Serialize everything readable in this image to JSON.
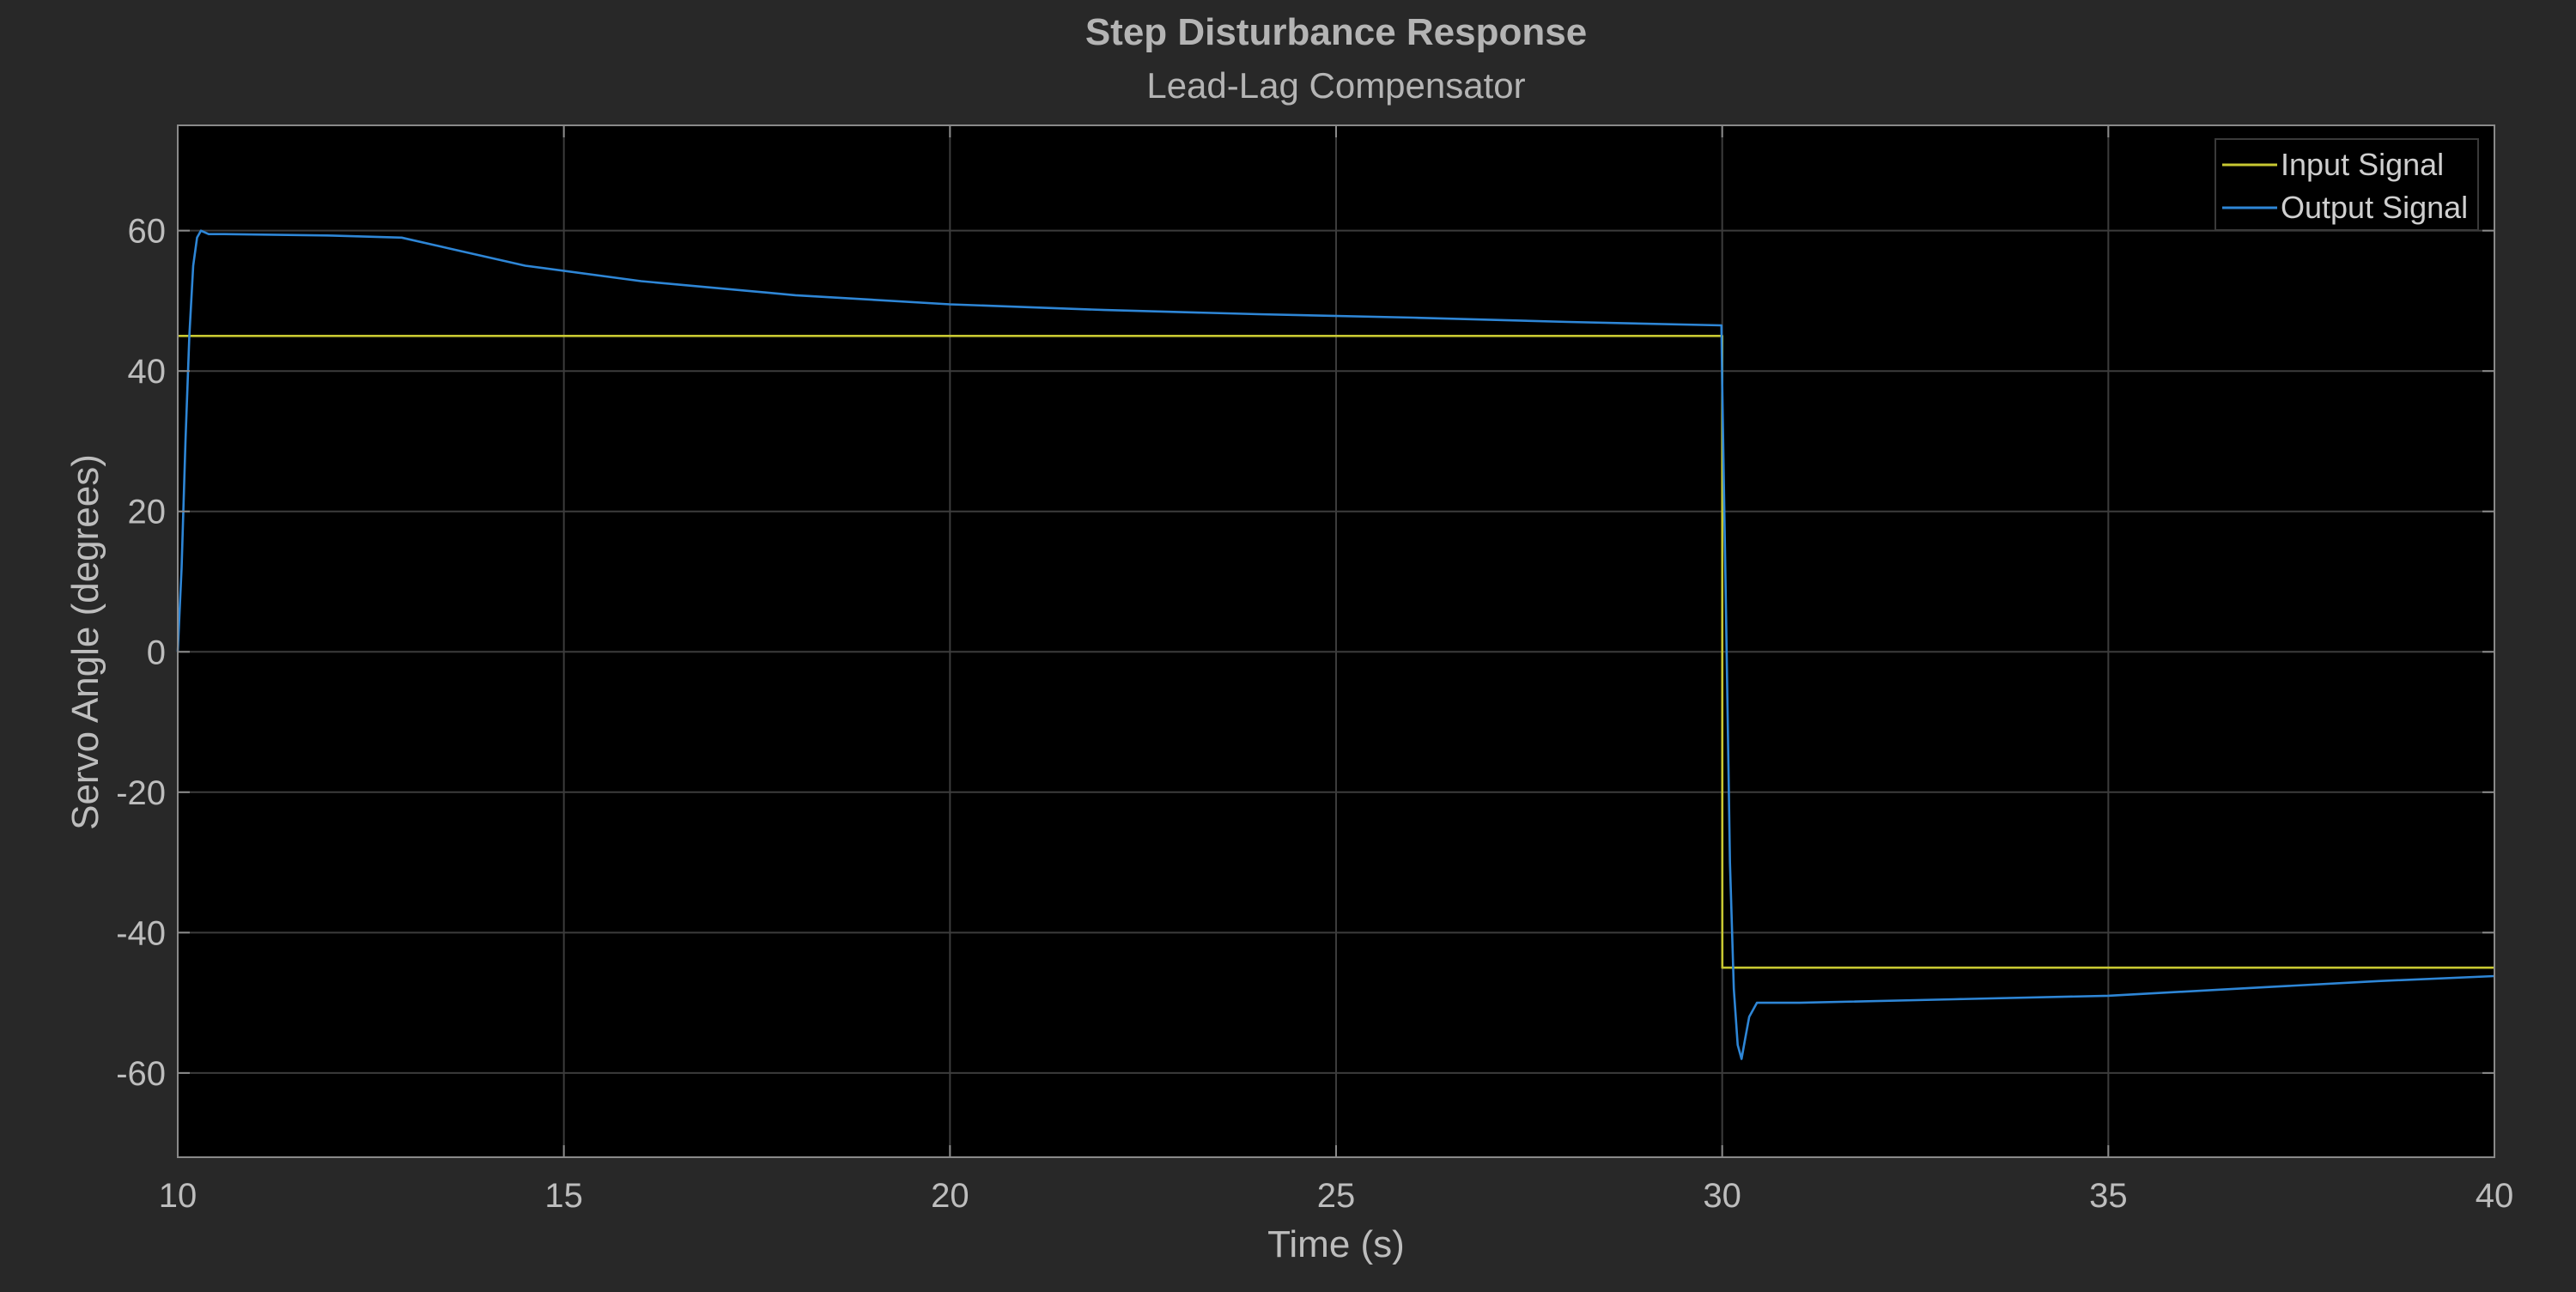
{
  "colors": {
    "figure_background": "#282828",
    "plot_background": "#000000",
    "grid": "#3c3c3c",
    "axes_border": "#8a8a8a",
    "text": "#bdbdbd",
    "input_signal": "#c8c832",
    "output_signal": "#2e86d6"
  },
  "chart_data": {
    "type": "line",
    "title": "Step Disturbance Response",
    "subtitle": "Lead-Lag Compensator",
    "xlabel": "Time (s)",
    "ylabel": "Servo Angle (degrees)",
    "xlim": [
      10,
      40
    ],
    "ylim": [
      -72,
      75
    ],
    "xticks": [
      10,
      15,
      20,
      25,
      30,
      35,
      40
    ],
    "yticks": [
      -60,
      -40,
      -20,
      0,
      20,
      40,
      60
    ],
    "grid": true,
    "legend_position": "top-right",
    "series": [
      {
        "name": "Input Signal",
        "color": "#c8c832",
        "x": [
          10.0,
          10.001,
          30.0,
          30.001,
          40.0
        ],
        "y": [
          45,
          45,
          45,
          -45,
          -45
        ]
      },
      {
        "name": "Output Signal",
        "color": "#2e86d6",
        "x": [
          10.0,
          10.05,
          10.1,
          10.15,
          10.2,
          10.25,
          10.3,
          10.4,
          10.6,
          12.0,
          12.9,
          13.5,
          14.5,
          16.0,
          18.0,
          20.0,
          22.0,
          24.0,
          26.0,
          28.0,
          29.99,
          30.0,
          30.05,
          30.1,
          30.15,
          30.2,
          30.25,
          30.3,
          30.35,
          30.45,
          30.6,
          31.0,
          33.0,
          35.0,
          37.0,
          38.5,
          40.0
        ],
        "y": [
          0,
          12,
          30,
          45,
          55,
          59,
          60,
          59.5,
          59.5,
          59.3,
          59.0,
          57.5,
          55.0,
          52.8,
          50.8,
          49.5,
          48.7,
          48.1,
          47.6,
          47.0,
          46.5,
          38,
          5,
          -30,
          -48,
          -56,
          -58,
          -55,
          -52,
          -50,
          -50,
          -50,
          -49.5,
          -49,
          -47.8,
          -46.9,
          -46.2
        ]
      }
    ]
  }
}
